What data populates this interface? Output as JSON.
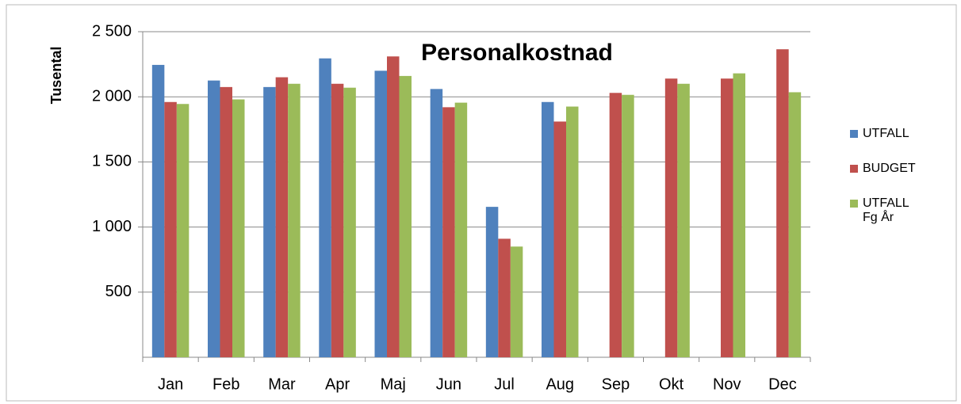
{
  "chart_data": {
    "type": "bar",
    "title": "Personalkostnad",
    "y_label": "Tusental",
    "categories": [
      "Jan",
      "Feb",
      "Mar",
      "Apr",
      "Maj",
      "Jun",
      "Jul",
      "Aug",
      "Sep",
      "Okt",
      "Nov",
      "Dec"
    ],
    "series": [
      {
        "name": "UTFALL",
        "color": "#4f81bd",
        "values": [
          2245,
          2125,
          2075,
          2295,
          2200,
          2060,
          1155,
          1960,
          null,
          null,
          null,
          null
        ]
      },
      {
        "name": "BUDGET",
        "color": "#c0504d",
        "values": [
          1960,
          2075,
          2150,
          2100,
          2310,
          1920,
          910,
          1810,
          2030,
          2140,
          2140,
          2365
        ]
      },
      {
        "name": "UTFALL Fg År",
        "color": "#9bbb59",
        "values": [
          1945,
          1980,
          2100,
          2070,
          2160,
          1955,
          850,
          1925,
          2015,
          2100,
          2180,
          2035
        ]
      }
    ],
    "ylim": [
      0,
      2500
    ],
    "yticks": [
      500,
      {
        "value": 1000,
        "label": "1 000"
      },
      {
        "value": 1500,
        "label": "1 500"
      },
      {
        "value": 2000,
        "label": "2 000"
      },
      {
        "value": 2500,
        "label": "2 500"
      }
    ],
    "grid": true,
    "legend": "right"
  }
}
